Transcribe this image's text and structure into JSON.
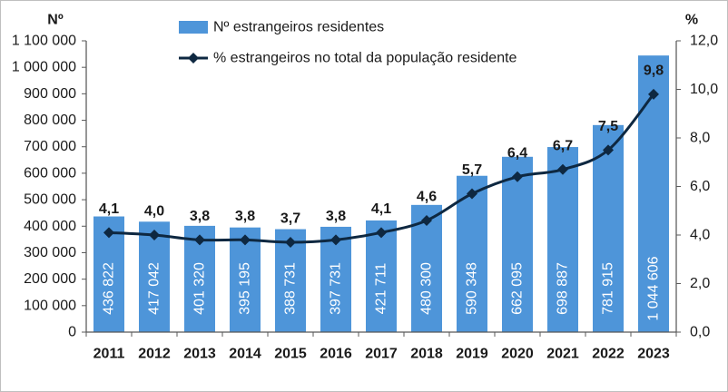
{
  "chart_data": {
    "type": "bar",
    "categories": [
      "2011",
      "2012",
      "2013",
      "2014",
      "2015",
      "2016",
      "2017",
      "2018",
      "2019",
      "2020",
      "2021",
      "2022",
      "2023"
    ],
    "series": [
      {
        "name": "Nº estrangeiros residentes",
        "type": "bar",
        "axis": "left",
        "values": [
          436822,
          417042,
          401320,
          395195,
          388731,
          397731,
          421711,
          480300,
          590348,
          662095,
          698887,
          781915,
          1044606
        ],
        "labels": [
          "436 822",
          "417 042",
          "401 320",
          "395 195",
          "388 731",
          "397 731",
          "421 711",
          "480 300",
          "590 348",
          "662 095",
          "698 887",
          "781 915",
          "1 044 606"
        ],
        "color": "#4E95D9"
      },
      {
        "name": "% estrangeiros no total da população residente",
        "type": "line",
        "axis": "right",
        "marker": "diamond",
        "values": [
          4.1,
          4.0,
          3.8,
          3.8,
          3.7,
          3.8,
          4.1,
          4.6,
          5.7,
          6.4,
          6.7,
          7.5,
          9.8
        ],
        "labels": [
          "4,1",
          "4,0",
          "3,8",
          "3,8",
          "3,7",
          "3,8",
          "4,1",
          "4,6",
          "5,7",
          "6,4",
          "6,7",
          "7,5",
          "9,8"
        ],
        "color": "#0E2841"
      }
    ],
    "y_left": {
      "title": "Nº",
      "range": [
        0,
        1100000
      ],
      "ticks": [
        0,
        100000,
        200000,
        300000,
        400000,
        500000,
        600000,
        700000,
        800000,
        900000,
        1000000,
        1100000
      ],
      "tick_labels": [
        "0",
        "100 000",
        "200 000",
        "300 000",
        "400 000",
        "500 000",
        "600 000",
        "700 000",
        "800 000",
        "900 000",
        "1 000 000",
        "1 100 000"
      ]
    },
    "y_right": {
      "title": "%",
      "range": [
        0,
        12
      ],
      "ticks": [
        0,
        2,
        4,
        6,
        8,
        10,
        12
      ],
      "tick_labels": [
        "0,0",
        "2,0",
        "4,0",
        "6,0",
        "8,0",
        "10,0",
        "12,0"
      ]
    },
    "legend_position": "top",
    "grid": false
  }
}
